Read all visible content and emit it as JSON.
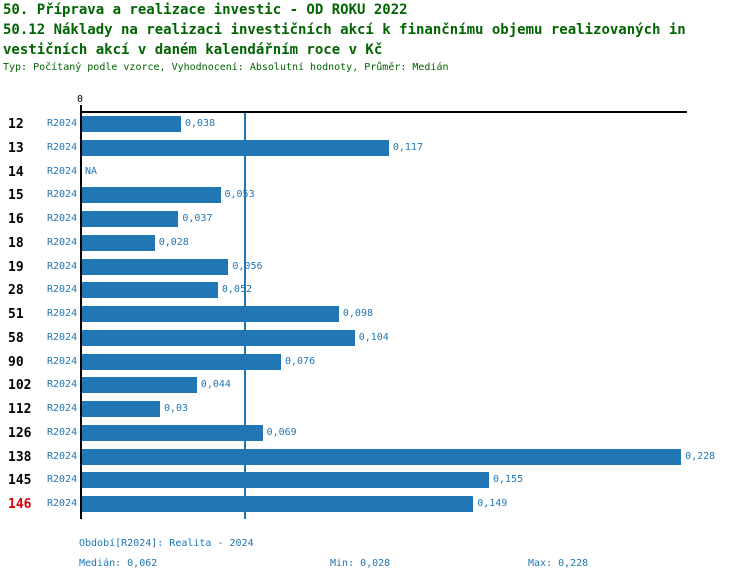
{
  "header": {
    "line1": "50. Příprava a realizace investic - OD ROKU 2022",
    "line2": "50.12 Náklady na realizaci investičních akcí k finančnímu objemu realizovaných in",
    "line3": "vestičních akcí v daném kalendářním roce v Kč",
    "meta": "Typ: Počítaný podle vzorce, Vyhodnocení: Absolutní hodnoty, Průměr: Medián"
  },
  "colors": {
    "title_green": "#006400",
    "bar_blue": "#2077b4",
    "highlight_red": "#dd0000",
    "axis_black": "#000000"
  },
  "chart_data": {
    "type": "bar",
    "orientation": "horizontal",
    "title": "50.12 Náklady na realizaci investičních akcí k finančnímu objemu realizovaných investičních akcí v daném kalendářním roce v Kč",
    "zero_label": "0",
    "xlim": [
      0,
      0.2315
    ],
    "grid": false,
    "median_line_value": 0.062,
    "series_name": "R2024",
    "rows": [
      {
        "id": "12",
        "series": "R2024",
        "value": 0.038,
        "label": "0,038",
        "na": false,
        "highlight": false
      },
      {
        "id": "13",
        "series": "R2024",
        "value": 0.117,
        "label": "0,117",
        "na": false,
        "highlight": false
      },
      {
        "id": "14",
        "series": "R2024",
        "value": null,
        "label": "NA",
        "na": true,
        "highlight": false
      },
      {
        "id": "15",
        "series": "R2024",
        "value": 0.053,
        "label": "0,053",
        "na": false,
        "highlight": false
      },
      {
        "id": "16",
        "series": "R2024",
        "value": 0.037,
        "label": "0,037",
        "na": false,
        "highlight": false
      },
      {
        "id": "18",
        "series": "R2024",
        "value": 0.028,
        "label": "0,028",
        "na": false,
        "highlight": false
      },
      {
        "id": "19",
        "series": "R2024",
        "value": 0.056,
        "label": "0,056",
        "na": false,
        "highlight": false
      },
      {
        "id": "28",
        "series": "R2024",
        "value": 0.052,
        "label": "0,052",
        "na": false,
        "highlight": false
      },
      {
        "id": "51",
        "series": "R2024",
        "value": 0.098,
        "label": "0,098",
        "na": false,
        "highlight": false
      },
      {
        "id": "58",
        "series": "R2024",
        "value": 0.104,
        "label": "0,104",
        "na": false,
        "highlight": false
      },
      {
        "id": "90",
        "series": "R2024",
        "value": 0.076,
        "label": "0,076",
        "na": false,
        "highlight": false
      },
      {
        "id": "102",
        "series": "R2024",
        "value": 0.044,
        "label": "0,044",
        "na": false,
        "highlight": false
      },
      {
        "id": "112",
        "series": "R2024",
        "value": 0.03,
        "label": "0,03",
        "na": false,
        "highlight": false
      },
      {
        "id": "126",
        "series": "R2024",
        "value": 0.069,
        "label": "0,069",
        "na": false,
        "highlight": false
      },
      {
        "id": "138",
        "series": "R2024",
        "value": 0.228,
        "label": "0,228",
        "na": false,
        "highlight": false
      },
      {
        "id": "145",
        "series": "R2024",
        "value": 0.155,
        "label": "0,155",
        "na": false,
        "highlight": false
      },
      {
        "id": "146",
        "series": "R2024",
        "value": 0.149,
        "label": "0,149",
        "na": false,
        "highlight": true
      }
    ]
  },
  "footer": {
    "period": "Období[R2024]: Realita - 2024",
    "median": "Medián: 0,062",
    "min": "Min: 0,028",
    "max": "Max: 0,228"
  }
}
